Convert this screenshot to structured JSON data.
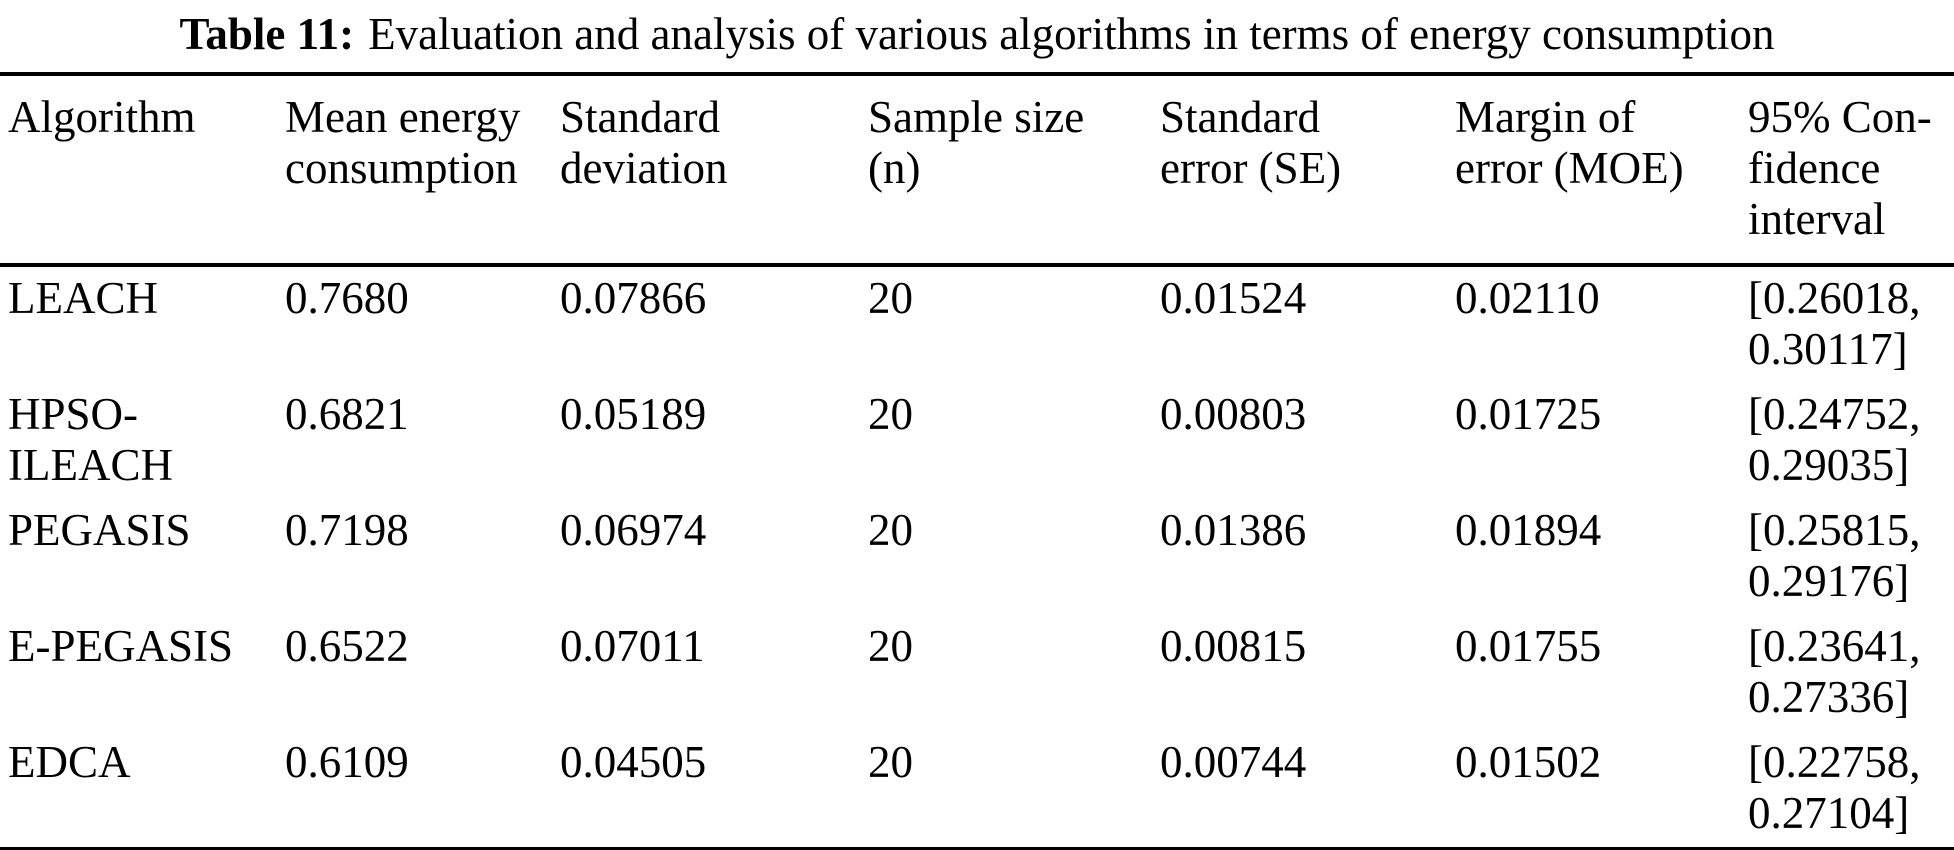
{
  "caption": {
    "label": "Table 11:",
    "text": "Evaluation and analysis of various algorithms in terms of energy consumption"
  },
  "table": {
    "columns": [
      {
        "key": "algorithm",
        "label": "Algorithm"
      },
      {
        "key": "mean",
        "label": "Mean energy\nconsumption"
      },
      {
        "key": "std_dev",
        "label": "Standard\ndeviation"
      },
      {
        "key": "sample_size",
        "label": "Sample size\n(n)"
      },
      {
        "key": "se",
        "label": "Standard\nerror (SE)"
      },
      {
        "key": "moe",
        "label": "Margin of\nerror (MOE)"
      },
      {
        "key": "ci",
        "label": "95% Con-\nfidence\ninterval"
      }
    ],
    "rows": [
      {
        "algorithm": "LEACH",
        "mean": "0.7680",
        "std_dev": "0.07866",
        "sample_size": "20",
        "se": "0.01524",
        "moe": "0.02110",
        "ci": "[0.26018,\n0.30117]"
      },
      {
        "algorithm": "HPSO-\nILEACH",
        "mean": "0.6821",
        "std_dev": "0.05189",
        "sample_size": "20",
        "se": "0.00803",
        "moe": "0.01725",
        "ci": "[0.24752,\n0.29035]"
      },
      {
        "algorithm": "PEGASIS",
        "mean": "0.7198",
        "std_dev": "0.06974",
        "sample_size": "20",
        "se": "0.01386",
        "moe": "0.01894",
        "ci": "[0.25815,\n0.29176]"
      },
      {
        "algorithm": "E-PEGASIS",
        "mean": "0.6522",
        "std_dev": "0.07011",
        "sample_size": "20",
        "se": "0.00815",
        "moe": "0.01755",
        "ci": "[0.23641,\n0.27336]"
      },
      {
        "algorithm": "EDCA",
        "mean": "0.6109",
        "std_dev": "0.04505",
        "sample_size": "20",
        "se": "0.00744",
        "moe": "0.01502",
        "ci": "[0.22758,\n0.27104]"
      }
    ]
  },
  "colors": {
    "text": "#000000",
    "background": "#ffffff",
    "rule": "#000000"
  }
}
